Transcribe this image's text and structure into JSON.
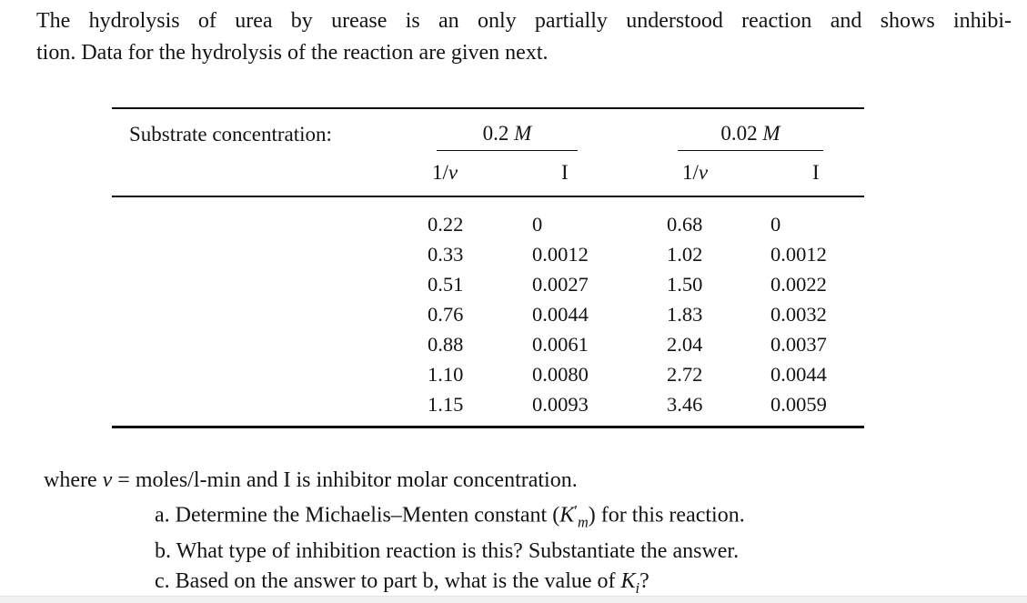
{
  "intro": {
    "line1": "The hydrolysis of urea by urease is an only partially understood reaction and shows inhibi-",
    "line2": "tion. Data for the hydrolysis of the reaction are given next."
  },
  "table": {
    "row_label": "Substrate concentration:",
    "groups": [
      {
        "value": "0.2 ",
        "unit": "M"
      },
      {
        "value": "0.02 ",
        "unit": "M"
      }
    ],
    "col_headers": {
      "inv_v_prefix": "1/",
      "inv_v_var": "v",
      "inhibitor": "I"
    },
    "rows": [
      {
        "g1_inv_v": "0.22",
        "g1_I": "0",
        "g2_inv_v": "0.68",
        "g2_I": "0"
      },
      {
        "g1_inv_v": "0.33",
        "g1_I": "0.0012",
        "g2_inv_v": "1.02",
        "g2_I": "0.0012"
      },
      {
        "g1_inv_v": "0.51",
        "g1_I": "0.0027",
        "g2_inv_v": "1.50",
        "g2_I": "0.0022"
      },
      {
        "g1_inv_v": "0.76",
        "g1_I": "0.0044",
        "g2_inv_v": "1.83",
        "g2_I": "0.0032"
      },
      {
        "g1_inv_v": "0.88",
        "g1_I": "0.0061",
        "g2_inv_v": "2.04",
        "g2_I": "0.0037"
      },
      {
        "g1_inv_v": "1.10",
        "g1_I": "0.0080",
        "g2_inv_v": "2.72",
        "g2_I": "0.0044"
      },
      {
        "g1_inv_v": "1.15",
        "g1_I": "0.0093",
        "g2_inv_v": "3.46",
        "g2_I": "0.0059"
      }
    ]
  },
  "footer": {
    "where_prefix": "where ",
    "where_v": "v",
    "where_rest": " = moles/l-min and I is inhibitor molar concentration.",
    "item_a_prefix": "a. Determine the Michaelis–Menten constant (",
    "item_a_K": "K",
    "item_a_prime": "′",
    "item_a_sub": "m",
    "item_a_suffix": ") for this reaction.",
    "item_b": "b. What type of inhibition reaction is this? Substantiate the answer.",
    "item_c_prefix": "c. Based on the answer to part b, what is the value of ",
    "item_c_K": "K",
    "item_c_sub": "i",
    "item_c_suffix": "?"
  }
}
